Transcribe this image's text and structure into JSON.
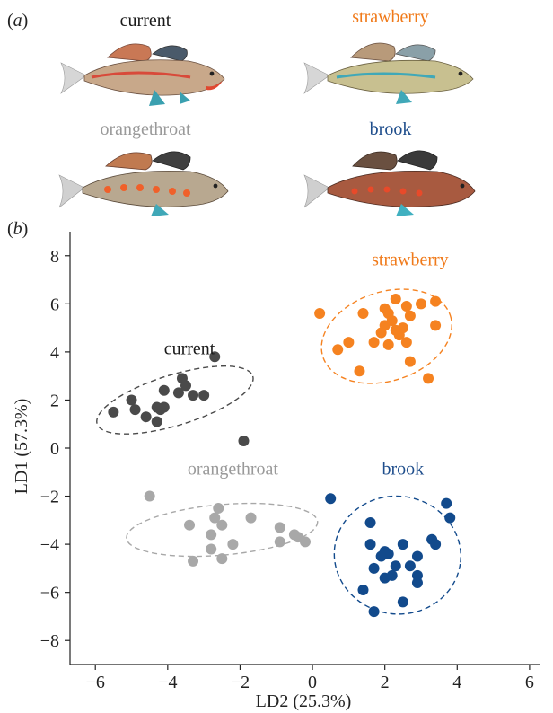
{
  "panels": {
    "a_label": "a",
    "b_label": "b"
  },
  "species": [
    {
      "key": "current",
      "name": "current",
      "color": "#1a1a1a"
    },
    {
      "key": "strawberry",
      "name": "strawberry",
      "color": "#f07a1a"
    },
    {
      "key": "orangethroat",
      "name": "orangethroat",
      "color": "#9a9a9a"
    },
    {
      "key": "brook",
      "name": "brook",
      "color": "#1f4e8c"
    }
  ],
  "chart_data": {
    "type": "scatter",
    "title": "",
    "xlabel": "LD2 (25.3%)",
    "ylabel": "LD1 (57.3%)",
    "xlim": [
      -6.7,
      6.3
    ],
    "ylim": [
      -9,
      9
    ],
    "xticks": [
      -6,
      -4,
      -2,
      0,
      2,
      4,
      6
    ],
    "yticks": [
      8,
      6,
      4,
      2,
      0,
      -2,
      -4,
      -6,
      -8
    ],
    "grid": false,
    "series": [
      {
        "name": "current",
        "color": "#4a4a4a",
        "points": [
          [
            -2.7,
            3.8
          ],
          [
            -3.6,
            2.9
          ],
          [
            -3.5,
            2.6
          ],
          [
            -3.3,
            2.2
          ],
          [
            -4.1,
            2.4
          ],
          [
            -3.7,
            2.3
          ],
          [
            -3.0,
            2.2
          ],
          [
            -5.0,
            2.0
          ],
          [
            -4.3,
            1.7
          ],
          [
            -4.1,
            1.7
          ],
          [
            -4.2,
            1.6
          ],
          [
            -4.9,
            1.6
          ],
          [
            -5.5,
            1.5
          ],
          [
            -4.6,
            1.3
          ],
          [
            -4.3,
            1.1
          ],
          [
            -1.9,
            0.3
          ]
        ],
        "ellipse": {
          "cx": -3.8,
          "cy": 2.0,
          "rx": 2.25,
          "ry": 1.05,
          "angle_deg": 17
        }
      },
      {
        "name": "strawberry",
        "color": "#f58220",
        "points": [
          [
            2.3,
            6.2
          ],
          [
            3.4,
            6.1
          ],
          [
            3.0,
            6.0
          ],
          [
            2.6,
            5.9
          ],
          [
            2.0,
            5.8
          ],
          [
            2.1,
            5.6
          ],
          [
            0.2,
            5.6
          ],
          [
            1.4,
            5.6
          ],
          [
            2.7,
            5.5
          ],
          [
            2.2,
            5.3
          ],
          [
            2.0,
            5.1
          ],
          [
            2.5,
            5.0
          ],
          [
            3.4,
            5.1
          ],
          [
            2.3,
            4.9
          ],
          [
            2.4,
            4.7
          ],
          [
            1.9,
            4.8
          ],
          [
            2.6,
            4.4
          ],
          [
            1.0,
            4.4
          ],
          [
            1.7,
            4.4
          ],
          [
            2.1,
            4.3
          ],
          [
            0.7,
            4.1
          ],
          [
            2.7,
            3.6
          ],
          [
            1.3,
            3.2
          ],
          [
            3.2,
            2.9
          ]
        ],
        "ellipse": {
          "cx": 2.05,
          "cy": 4.65,
          "rx": 1.85,
          "ry": 1.85,
          "angle_deg": 18
        }
      },
      {
        "name": "orangethroat",
        "color": "#a8a8a8",
        "points": [
          [
            -4.5,
            -2.0
          ],
          [
            -2.6,
            -2.5
          ],
          [
            -2.5,
            -3.2
          ],
          [
            -1.7,
            -2.9
          ],
          [
            -2.7,
            -2.9
          ],
          [
            -3.4,
            -3.2
          ],
          [
            -0.9,
            -3.3
          ],
          [
            -2.8,
            -3.6
          ],
          [
            -0.5,
            -3.6
          ],
          [
            -0.4,
            -3.7
          ],
          [
            -0.9,
            -3.9
          ],
          [
            -0.2,
            -3.9
          ],
          [
            -2.2,
            -4.0
          ],
          [
            -2.8,
            -4.2
          ],
          [
            -2.5,
            -4.6
          ],
          [
            -3.3,
            -4.7
          ]
        ],
        "ellipse": {
          "cx": -2.5,
          "cy": -3.4,
          "rx": 2.65,
          "ry": 1.05,
          "angle_deg": 5
        }
      },
      {
        "name": "brook",
        "color": "#124a8c",
        "points": [
          [
            0.5,
            -2.1
          ],
          [
            3.7,
            -2.3
          ],
          [
            3.8,
            -2.9
          ],
          [
            1.6,
            -3.1
          ],
          [
            3.3,
            -3.8
          ],
          [
            3.4,
            -4.0
          ],
          [
            1.6,
            -4.0
          ],
          [
            2.5,
            -4.0
          ],
          [
            2.0,
            -4.3
          ],
          [
            2.1,
            -4.4
          ],
          [
            2.9,
            -4.5
          ],
          [
            1.9,
            -4.5
          ],
          [
            2.3,
            -4.9
          ],
          [
            2.7,
            -4.9
          ],
          [
            1.7,
            -5.0
          ],
          [
            2.2,
            -5.3
          ],
          [
            2.0,
            -5.4
          ],
          [
            2.9,
            -5.3
          ],
          [
            2.9,
            -5.6
          ],
          [
            1.4,
            -5.9
          ],
          [
            2.5,
            -6.4
          ],
          [
            1.7,
            -6.8
          ]
        ],
        "ellipse": {
          "cx": 2.35,
          "cy": -4.45,
          "rx": 1.75,
          "ry": 2.45,
          "angle_deg": -8
        }
      }
    ],
    "annotations": [
      {
        "text": "current",
        "x": -3.4,
        "y": 3.9,
        "color": "#1a1a1a"
      },
      {
        "text": "strawberry",
        "x": 2.7,
        "y": 7.6,
        "color": "#f07a1a"
      },
      {
        "text": "orangethroat",
        "x": -2.2,
        "y": -1.1,
        "color": "#9a9a9a"
      },
      {
        "text": "brook",
        "x": 2.5,
        "y": -1.1,
        "color": "#1f4e8c"
      }
    ]
  }
}
